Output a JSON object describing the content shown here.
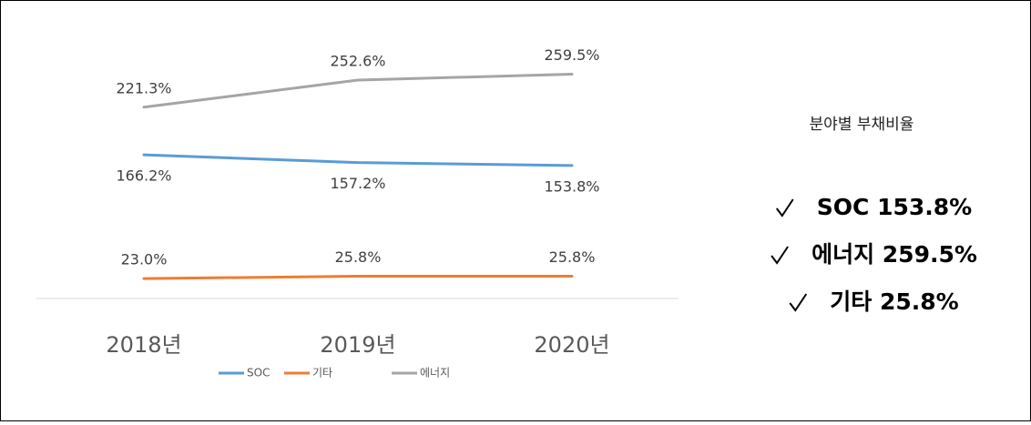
{
  "chart_data": {
    "type": "line",
    "categories": [
      "2018년",
      "2019년",
      "2020년"
    ],
    "series": [
      {
        "name": "SOC",
        "color": "#5b9bd5",
        "values": [
          166.2,
          157.2,
          153.8
        ],
        "value_labels": [
          "166.2%",
          "157.2%",
          "153.8%"
        ]
      },
      {
        "name": "기타",
        "color": "#ed7d31",
        "values": [
          23.0,
          25.8,
          25.8
        ],
        "value_labels": [
          "23.0%",
          "25.8%",
          "25.8%"
        ]
      },
      {
        "name": "에너지",
        "color": "#a5a5a5",
        "values": [
          221.3,
          252.6,
          259.5
        ],
        "value_labels": [
          "221.3%",
          "252.6%",
          "259.5%"
        ]
      }
    ],
    "ylim": [
      0,
      300
    ]
  },
  "panel": {
    "title": "분야별 부채비율",
    "items": [
      "SOC 153.8%",
      "에너지 259.5%",
      "기타 25.8%"
    ]
  }
}
